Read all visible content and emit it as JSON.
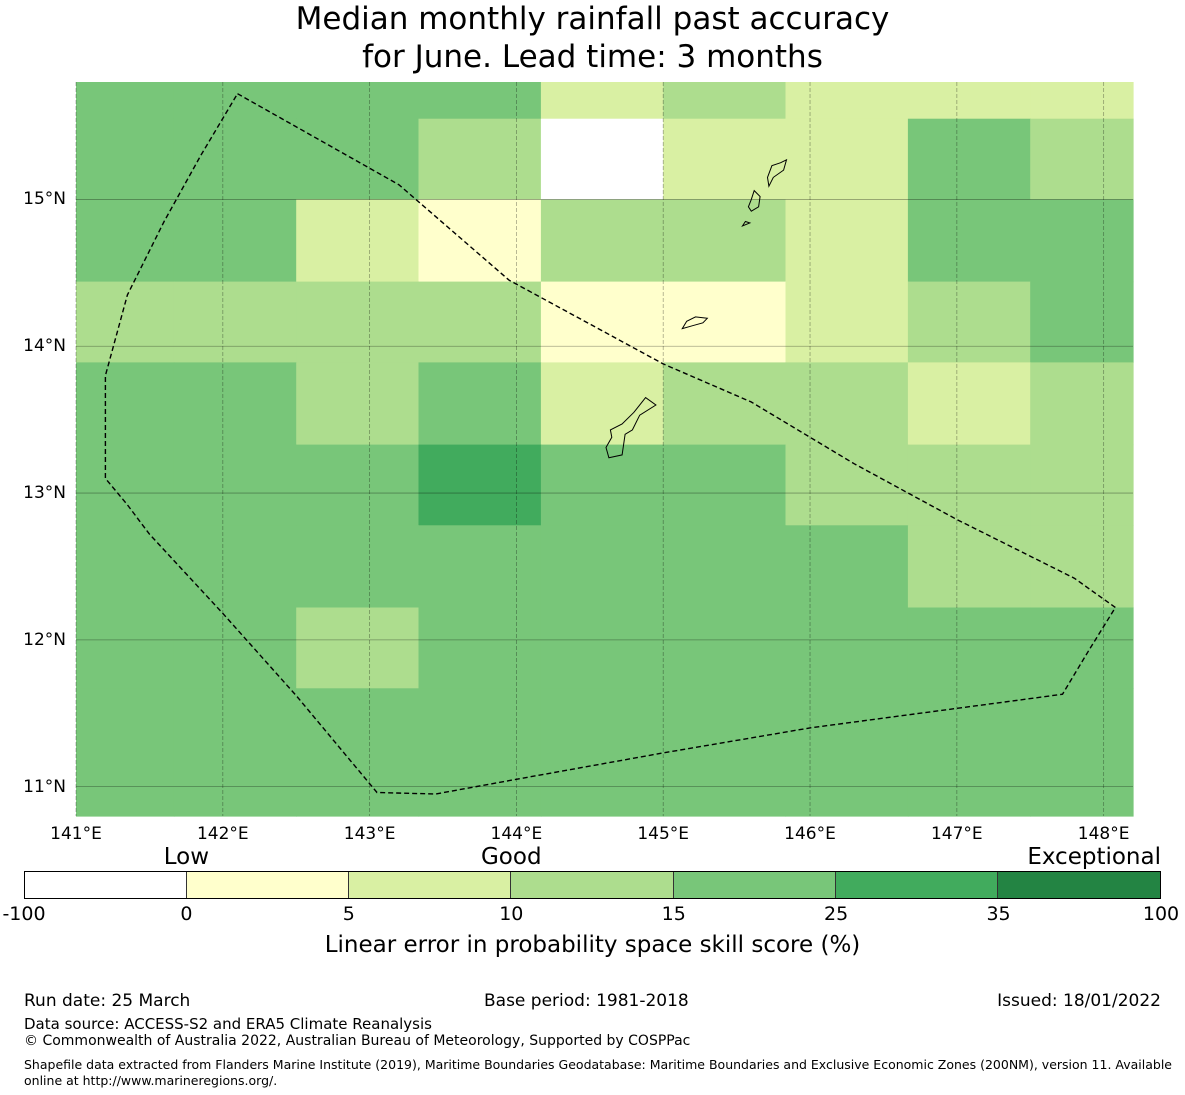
{
  "title": {
    "line1": "Median monthly rainfall past accuracy",
    "line2": "for June. Lead time: 3 months"
  },
  "map": {
    "lon_range": [
      141,
      148.2
    ],
    "lat_range": [
      10.8,
      15.8
    ],
    "lat_ticks": [
      {
        "value": 15,
        "label": "15°N"
      },
      {
        "value": 14,
        "label": "14°N"
      },
      {
        "value": 13,
        "label": "13°N"
      },
      {
        "value": 12,
        "label": "12°N"
      },
      {
        "value": 11,
        "label": "11°N"
      }
    ],
    "lon_ticks": [
      {
        "value": 141,
        "label": "141°E"
      },
      {
        "value": 142,
        "label": "142°E"
      },
      {
        "value": 143,
        "label": "143°E"
      },
      {
        "value": 144,
        "label": "144°E"
      },
      {
        "value": 145,
        "label": "145°E"
      },
      {
        "value": 146,
        "label": "146°E"
      },
      {
        "value": 147,
        "label": "147°E"
      },
      {
        "value": 148,
        "label": "148°E"
      }
    ],
    "grid": true,
    "grid_cols_lon": [
      141,
      141.667,
      142.5,
      143.333,
      144.167,
      145,
      145.833,
      146.667,
      147.5,
      148.2
    ],
    "grid_rows_lat": [
      15.8,
      15.55,
      15,
      14.44,
      13.89,
      13.33,
      12.78,
      12.22,
      11.67,
      10.8
    ],
    "cell_classes": [
      [
        4,
        4,
        4,
        4,
        2,
        3,
        2,
        2,
        2
      ],
      [
        4,
        4,
        4,
        3,
        0,
        2,
        2,
        4,
        3
      ],
      [
        4,
        4,
        2,
        1,
        3,
        3,
        2,
        4,
        4
      ],
      [
        3,
        3,
        3,
        3,
        1,
        1,
        2,
        3,
        4
      ],
      [
        4,
        4,
        3,
        4,
        2,
        3,
        3,
        2,
        3
      ],
      [
        4,
        4,
        4,
        5,
        4,
        4,
        3,
        3,
        3
      ],
      [
        4,
        4,
        4,
        4,
        4,
        4,
        4,
        3,
        3
      ],
      [
        4,
        4,
        3,
        4,
        4,
        4,
        4,
        4,
        4
      ],
      [
        4,
        4,
        4,
        4,
        4,
        4,
        4,
        4,
        4
      ]
    ],
    "boundary_lonlat": [
      [
        142.1,
        15.72
      ],
      [
        143.2,
        15.1
      ],
      [
        143.95,
        14.45
      ],
      [
        145.0,
        13.88
      ],
      [
        145.6,
        13.62
      ],
      [
        146.3,
        13.2
      ],
      [
        147.0,
        12.82
      ],
      [
        147.8,
        12.42
      ],
      [
        148.08,
        12.22
      ],
      [
        147.9,
        11.93
      ],
      [
        147.72,
        11.63
      ],
      [
        147.5,
        11.6
      ],
      [
        146.0,
        11.4
      ],
      [
        145.0,
        11.23
      ],
      [
        144.0,
        11.05
      ],
      [
        143.45,
        10.95
      ],
      [
        143.05,
        10.96
      ],
      [
        142.5,
        11.62
      ],
      [
        142.0,
        12.18
      ],
      [
        141.5,
        12.72
      ],
      [
        141.35,
        12.92
      ],
      [
        141.2,
        13.1
      ],
      [
        141.2,
        13.4
      ],
      [
        141.2,
        13.8
      ],
      [
        141.35,
        14.35
      ],
      [
        141.6,
        14.85
      ],
      [
        141.85,
        15.3
      ],
      [
        142.1,
        15.72
      ]
    ],
    "islands_lonlat": [
      [
        [
          144.63,
          13.24
        ],
        [
          144.72,
          13.26
        ],
        [
          144.74,
          13.4
        ],
        [
          144.79,
          13.43
        ],
        [
          144.84,
          13.53
        ],
        [
          144.95,
          13.6
        ],
        [
          144.88,
          13.65
        ],
        [
          144.8,
          13.55
        ],
        [
          144.72,
          13.47
        ],
        [
          144.64,
          13.43
        ],
        [
          144.65,
          13.38
        ],
        [
          144.61,
          13.31
        ],
        [
          144.63,
          13.24
        ]
      ],
      [
        [
          145.13,
          14.12
        ],
        [
          145.2,
          14.14
        ],
        [
          145.27,
          14.16
        ],
        [
          145.3,
          14.19
        ],
        [
          145.22,
          14.2
        ],
        [
          145.16,
          14.17
        ],
        [
          145.13,
          14.12
        ]
      ],
      [
        [
          145.6,
          14.92
        ],
        [
          145.65,
          14.95
        ],
        [
          145.66,
          15.02
        ],
        [
          145.62,
          15.06
        ],
        [
          145.6,
          15.0
        ],
        [
          145.58,
          14.95
        ],
        [
          145.6,
          14.92
        ]
      ],
      [
        [
          145.72,
          15.09
        ],
        [
          145.75,
          15.15
        ],
        [
          145.82,
          15.2
        ],
        [
          145.84,
          15.27
        ],
        [
          145.8,
          15.25
        ],
        [
          145.74,
          15.23
        ],
        [
          145.71,
          15.15
        ],
        [
          145.72,
          15.09
        ]
      ],
      [
        [
          145.54,
          14.82
        ],
        [
          145.59,
          14.84
        ],
        [
          145.56,
          14.85
        ],
        [
          145.54,
          14.82
        ]
      ]
    ]
  },
  "colorbar": {
    "categories": [
      {
        "label": "Low",
        "at_tick": 1
      },
      {
        "label": "Good",
        "at_tick": 3
      },
      {
        "label": "Exceptional",
        "at_tick": 7
      }
    ],
    "ticks": [
      "-100",
      "0",
      "5",
      "10",
      "15",
      "25",
      "35",
      "100"
    ],
    "colors": [
      "#ffffff",
      "#ffffcc",
      "#d9f0a3",
      "#addd8e",
      "#78c679",
      "#41ab5d",
      "#238443"
    ],
    "label": "Linear error in probability space skill score (%)"
  },
  "footer": {
    "run_date": "Run date: 25 March",
    "base_period": "Base period: 1981-2018",
    "issued": "Issued: 18/01/2022",
    "data_source": "Data source: ACCESS-S2 and ERA5 Climate Reanalysis",
    "copyright": "© Commonwealth of Australia 2022, Australian Bureau of Meteorology, Supported by COSPPac",
    "shapefile": "Shapefile data extracted from Flanders Marine Institute (2019), Maritime Boundaries Geodatabase: Maritime Boundaries and Exclusive Economic Zones (200NM), version 11. Available online at http://www.marineregions.org/."
  }
}
